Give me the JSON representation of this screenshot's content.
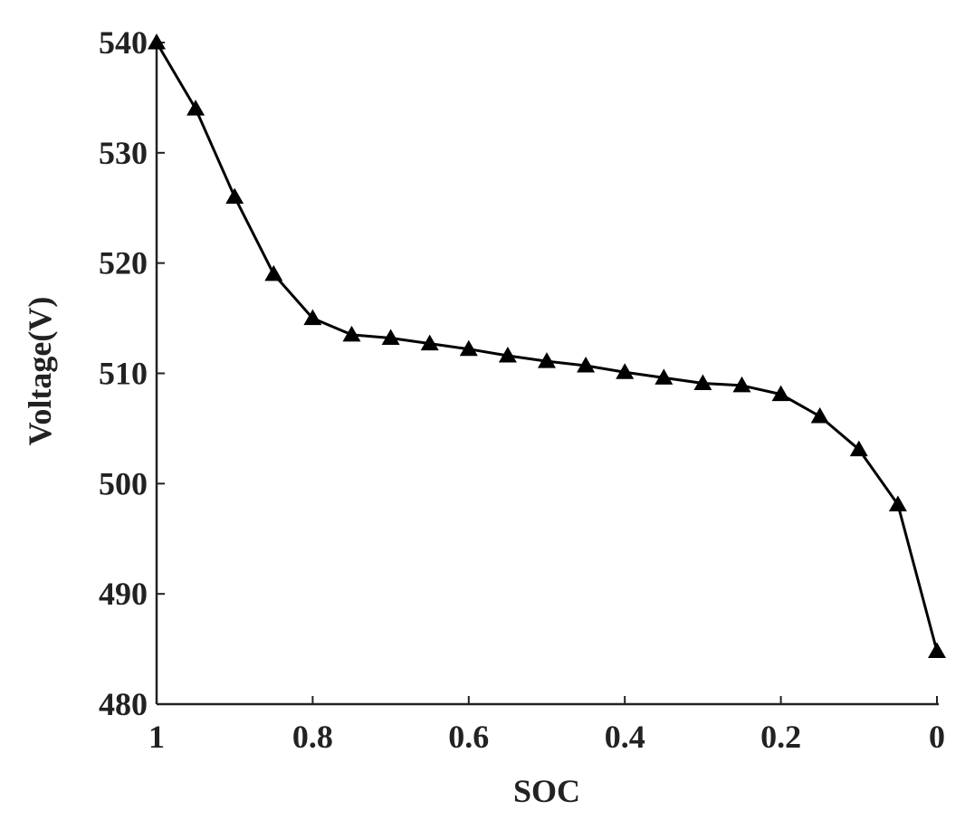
{
  "chart_data": {
    "type": "line",
    "x_label": "SOC",
    "y_label": "Voltage(V)",
    "x": [
      1,
      0.95,
      0.9,
      0.85,
      0.8,
      0.75,
      0.7,
      0.65,
      0.6,
      0.55,
      0.5,
      0.45,
      0.4,
      0.35,
      0.3,
      0.25,
      0.2,
      0.15,
      0.1,
      0.05,
      0
    ],
    "series": [
      {
        "color": "#000000",
        "marker": "triangle",
        "values": [
          540,
          534,
          526,
          519,
          515,
          513.5,
          513.2,
          512.7,
          512.2,
          511.6,
          511.1,
          510.7,
          510.1,
          509.6,
          509.1,
          508.9,
          508.1,
          506.1,
          503.1,
          498.1,
          484.8
        ]
      }
    ],
    "xlim": [
      1,
      0
    ],
    "xticks": [
      1,
      0.8,
      0.6,
      0.4,
      0.2,
      0
    ],
    "ylim": [
      480,
      540
    ],
    "yticks": [
      480,
      490,
      500,
      510,
      520,
      530,
      540
    ],
    "grid": false
  }
}
